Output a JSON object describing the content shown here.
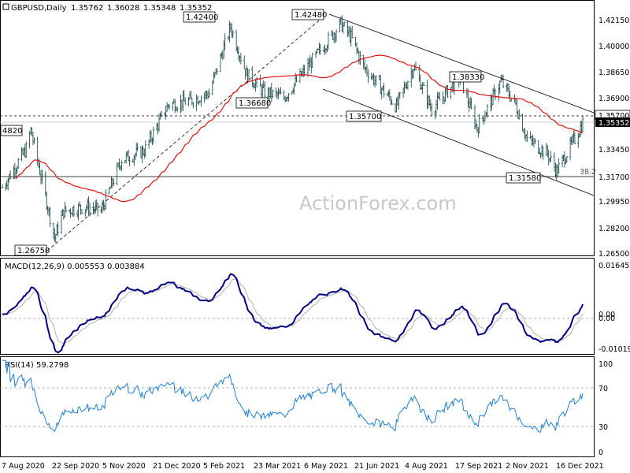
{
  "chart_data": {
    "type": "candlestick",
    "header": {
      "symbol": "GBPUSD,Daily",
      "open": "1.35762",
      "high": "1.36028",
      "low": "1.35348",
      "close": "1.35352"
    },
    "watermark": "ActionForex.com",
    "colors": {
      "candle": "#0a3d3d",
      "ma": "#e01010",
      "macd": "#000080",
      "signal": "#b0b0b0",
      "rsi": "#1e7fd0",
      "channel": "#000000",
      "border": "#000000"
    },
    "x_tick_labels": [
      "7 Aug 2020",
      "22 Sep 2020",
      "5 Nov 2020",
      "21 Dec 2020",
      "5 Feb 2021",
      "23 Mar 2021",
      "6 May 2021",
      "21 Jun 2021",
      "4 Aug 2021",
      "17 Sep 2021",
      "2 Nov 2021",
      "16 Dec 2021"
    ],
    "price_panel": {
      "y_ticks": [
        "1.42150",
        "1.40000",
        "1.38650",
        "1.36900",
        "1.35700",
        "1.35352",
        "1.33450",
        "1.31700",
        "1.29950",
        "1.28200",
        "1.26500"
      ],
      "ylim": [
        1.264,
        1.434
      ],
      "levels": [
        {
          "label": "1.35700",
          "value": 1.357,
          "style": "dashed"
        },
        {
          "label": "1.31580",
          "value": 1.3158,
          "style": "solid"
        }
      ],
      "current_price": {
        "label": "1.35352",
        "value": 1.35352
      },
      "annotations": [
        "1.42400",
        "1.42480",
        "1.36680",
        "1.38330",
        "1.26750",
        "1.31580",
        "1.35700",
        "4820",
        "38.2"
      ],
      "ma_label": "",
      "key_prices": [
        {
          "date": "2020-08-07",
          "close": 1.309
        },
        {
          "date": "2020-08-28",
          "close": 1.335
        },
        {
          "date": "2020-09-01",
          "close": 1.348
        },
        {
          "date": "2020-09-22",
          "close": 1.275
        },
        {
          "date": "2020-09-30",
          "close": 1.293
        },
        {
          "date": "2020-10-20",
          "close": 1.296
        },
        {
          "date": "2020-11-02",
          "close": 1.293
        },
        {
          "date": "2020-11-20",
          "close": 1.328
        },
        {
          "date": "2020-12-10",
          "close": 1.334
        },
        {
          "date": "2020-12-31",
          "close": 1.365
        },
        {
          "date": "2021-01-20",
          "close": 1.368
        },
        {
          "date": "2021-02-05",
          "close": 1.373
        },
        {
          "date": "2021-02-24",
          "close": 1.418
        },
        {
          "date": "2021-03-10",
          "close": 1.386
        },
        {
          "date": "2021-03-25",
          "close": 1.374
        },
        {
          "date": "2021-04-12",
          "close": 1.37
        },
        {
          "date": "2021-05-05",
          "close": 1.393
        },
        {
          "date": "2021-06-01",
          "close": 1.42
        },
        {
          "date": "2021-06-10",
          "close": 1.411
        },
        {
          "date": "2021-06-21",
          "close": 1.391
        },
        {
          "date": "2021-07-20",
          "close": 1.364
        },
        {
          "date": "2021-08-04",
          "close": 1.391
        },
        {
          "date": "2021-08-20",
          "close": 1.362
        },
        {
          "date": "2021-09-14",
          "close": 1.384
        },
        {
          "date": "2021-09-29",
          "close": 1.349
        },
        {
          "date": "2021-10-20",
          "close": 1.381
        },
        {
          "date": "2021-11-02",
          "close": 1.365
        },
        {
          "date": "2021-11-12",
          "close": 1.342
        },
        {
          "date": "2021-11-30",
          "close": 1.332
        },
        {
          "date": "2021-12-08",
          "close": 1.32
        },
        {
          "date": "2021-12-16",
          "close": 1.331
        },
        {
          "date": "2021-12-24",
          "close": 1.342
        },
        {
          "date": "2021-12-31",
          "close": 1.353
        }
      ]
    },
    "macd_panel": {
      "label": "MACD(12,26,9) 0.005553 0.003884",
      "y_ticks": [
        "0.01645",
        "0.00",
        "0.00",
        "-0.01019"
      ],
      "ylim": [
        -0.0125,
        0.0175
      ]
    },
    "rsi_panel": {
      "label": "RSI(14) 59.2798",
      "y_ticks": [
        "100",
        "70",
        "30",
        "0"
      ],
      "levels": [
        70,
        30
      ],
      "ylim": [
        0,
        100
      ]
    }
  }
}
